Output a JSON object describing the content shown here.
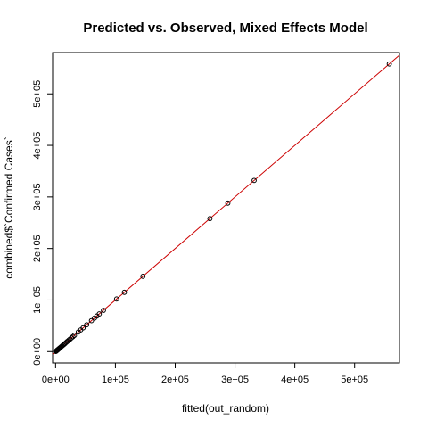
{
  "chart_data": {
    "type": "scatter",
    "title": "Predicted vs. Observed, Mixed Effects Model",
    "xlabel": "fitted(out_random)",
    "ylabel": "combined$`Confirmed Cases`",
    "xlim": [
      -5000,
      575000
    ],
    "ylim": [
      -22000,
      580000
    ],
    "x_ticks": [
      0,
      100000,
      200000,
      300000,
      400000,
      500000
    ],
    "x_tick_labels": [
      "0e+00",
      "1e+05",
      "2e+05",
      "3e+05",
      "4e+05",
      "5e+05"
    ],
    "y_ticks": [
      0,
      100000,
      200000,
      300000,
      400000,
      500000
    ],
    "y_tick_labels": [
      "0e+00",
      "1e+05",
      "2e+05",
      "3e+05",
      "4e+05",
      "5e+05"
    ],
    "grid": false,
    "reference_line": {
      "type": "y=x",
      "color": "#cc0000"
    },
    "point_style": "open-circle",
    "point_color": "#000000",
    "points": [
      {
        "x": 300,
        "y": 300
      },
      {
        "x": 700,
        "y": 700
      },
      {
        "x": 1200,
        "y": 1200
      },
      {
        "x": 1800,
        "y": 1800
      },
      {
        "x": 2500,
        "y": 2500
      },
      {
        "x": 3200,
        "y": 3200
      },
      {
        "x": 4000,
        "y": 4000
      },
      {
        "x": 5000,
        "y": 5000
      },
      {
        "x": 6000,
        "y": 6000
      },
      {
        "x": 7200,
        "y": 7200
      },
      {
        "x": 8500,
        "y": 8500
      },
      {
        "x": 10000,
        "y": 10000
      },
      {
        "x": 11500,
        "y": 11500
      },
      {
        "x": 13000,
        "y": 13000
      },
      {
        "x": 14500,
        "y": 14500
      },
      {
        "x": 16000,
        "y": 16000
      },
      {
        "x": 18000,
        "y": 18000
      },
      {
        "x": 20000,
        "y": 20000
      },
      {
        "x": 22000,
        "y": 22000
      },
      {
        "x": 24000,
        "y": 24000
      },
      {
        "x": 26500,
        "y": 26500
      },
      {
        "x": 29000,
        "y": 29000
      },
      {
        "x": 31500,
        "y": 31500
      },
      {
        "x": 38000,
        "y": 38000
      },
      {
        "x": 42000,
        "y": 42000
      },
      {
        "x": 46000,
        "y": 46000
      },
      {
        "x": 52000,
        "y": 52000
      },
      {
        "x": 60000,
        "y": 60000
      },
      {
        "x": 65000,
        "y": 65000
      },
      {
        "x": 69000,
        "y": 69000
      },
      {
        "x": 73000,
        "y": 73000
      },
      {
        "x": 80000,
        "y": 80000
      },
      {
        "x": 102000,
        "y": 102000
      },
      {
        "x": 115000,
        "y": 115000
      },
      {
        "x": 146000,
        "y": 146000
      },
      {
        "x": 258000,
        "y": 258000
      },
      {
        "x": 288000,
        "y": 288000
      },
      {
        "x": 332000,
        "y": 332000
      },
      {
        "x": 558000,
        "y": 558000
      }
    ]
  }
}
